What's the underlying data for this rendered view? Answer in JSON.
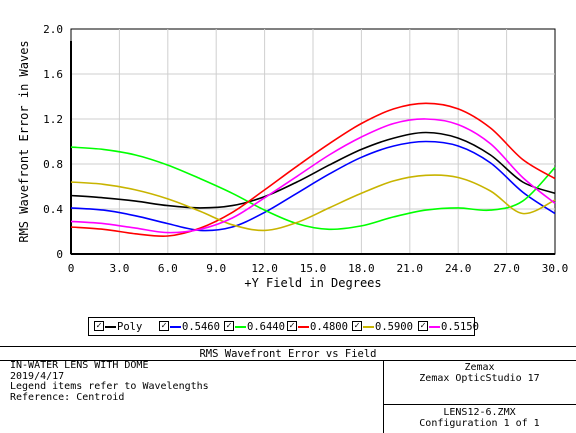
{
  "chart_data": {
    "type": "line",
    "title": "RMS Wavefront Error vs Field",
    "xlabel": "+Y Field in Degrees",
    "ylabel": "RMS Wavefront Error in Waves",
    "xlim": [
      0,
      30
    ],
    "ylim": [
      0,
      2
    ],
    "x_ticks": [
      "0",
      "3.0",
      "6.0",
      "9.0",
      "12.0",
      "15.0",
      "18.0",
      "21.0",
      "24.0",
      "27.0",
      "30.0"
    ],
    "y_ticks": [
      "0",
      "0.4",
      "0.8",
      "1.2",
      "1.6",
      "2.0"
    ],
    "grid": true,
    "legend_placement": "bottom",
    "series": [
      {
        "name": "Poly",
        "color": "#000000",
        "x": [
          0,
          2,
          4,
          6,
          8,
          10,
          12,
          14,
          16,
          18,
          20,
          22,
          24,
          26,
          28,
          30
        ],
        "y": [
          0.52,
          0.5,
          0.47,
          0.43,
          0.41,
          0.43,
          0.51,
          0.64,
          0.79,
          0.93,
          1.03,
          1.08,
          1.03,
          0.88,
          0.64,
          0.54
        ]
      },
      {
        "name": "0.5460",
        "color": "#0000ff",
        "x": [
          0,
          2,
          4,
          6,
          8,
          10,
          12,
          14,
          16,
          18,
          20,
          22,
          24,
          26,
          28,
          30
        ],
        "y": [
          0.41,
          0.39,
          0.34,
          0.27,
          0.21,
          0.24,
          0.37,
          0.54,
          0.71,
          0.86,
          0.96,
          1.0,
          0.96,
          0.81,
          0.55,
          0.36
        ]
      },
      {
        "name": "0.6440",
        "color": "#00ff00",
        "x": [
          0,
          2,
          4,
          6,
          8,
          10,
          12,
          14,
          16,
          18,
          20,
          22,
          24,
          26,
          28,
          30
        ],
        "y": [
          0.95,
          0.93,
          0.88,
          0.79,
          0.67,
          0.54,
          0.39,
          0.27,
          0.22,
          0.25,
          0.33,
          0.39,
          0.41,
          0.39,
          0.47,
          0.77
        ]
      },
      {
        "name": "0.4800",
        "color": "#ff0000",
        "x": [
          0,
          2,
          4,
          6,
          8,
          10,
          12,
          14,
          16,
          18,
          20,
          22,
          24,
          26,
          28,
          30
        ],
        "y": [
          0.24,
          0.22,
          0.18,
          0.16,
          0.23,
          0.37,
          0.57,
          0.78,
          0.98,
          1.16,
          1.29,
          1.34,
          1.29,
          1.12,
          0.84,
          0.67
        ]
      },
      {
        "name": "0.5900",
        "color": "#c8b400",
        "x": [
          0,
          2,
          4,
          6,
          8,
          10,
          12,
          14,
          16,
          18,
          20,
          22,
          24,
          26,
          28,
          30
        ],
        "y": [
          0.64,
          0.62,
          0.57,
          0.49,
          0.38,
          0.26,
          0.21,
          0.28,
          0.41,
          0.54,
          0.65,
          0.7,
          0.68,
          0.56,
          0.36,
          0.48
        ]
      },
      {
        "name": "0.5150",
        "color": "#ff00ff",
        "x": [
          0,
          2,
          4,
          6,
          8,
          10,
          12,
          14,
          16,
          18,
          20,
          22,
          24,
          26,
          28,
          30
        ],
        "y": [
          0.29,
          0.27,
          0.23,
          0.19,
          0.22,
          0.32,
          0.5,
          0.69,
          0.88,
          1.04,
          1.16,
          1.2,
          1.15,
          0.98,
          0.68,
          0.45
        ]
      }
    ]
  },
  "legend": {
    "check_glyph": "✓",
    "items": [
      {
        "label": "Poly",
        "color": "#000000"
      },
      {
        "label": "0.5460",
        "color": "#0000ff"
      },
      {
        "label": "0.6440",
        "color": "#00ff00"
      },
      {
        "label": "0.4800",
        "color": "#ff0000"
      },
      {
        "label": "0.5900",
        "color": "#c8b400"
      },
      {
        "label": "0.5150",
        "color": "#ff00ff"
      }
    ]
  },
  "info": {
    "title": "RMS Wavefront Error vs Field",
    "left_lines": "IN-WATER LENS WITH DOME\n2019/4/17\nLegend items refer to Wavelengths\nReference: Centroid",
    "company": "Zemax",
    "product": "Zemax OpticStudio 17",
    "file": "LENS12-6.ZMX",
    "configuration": "Configuration 1 of 1"
  }
}
